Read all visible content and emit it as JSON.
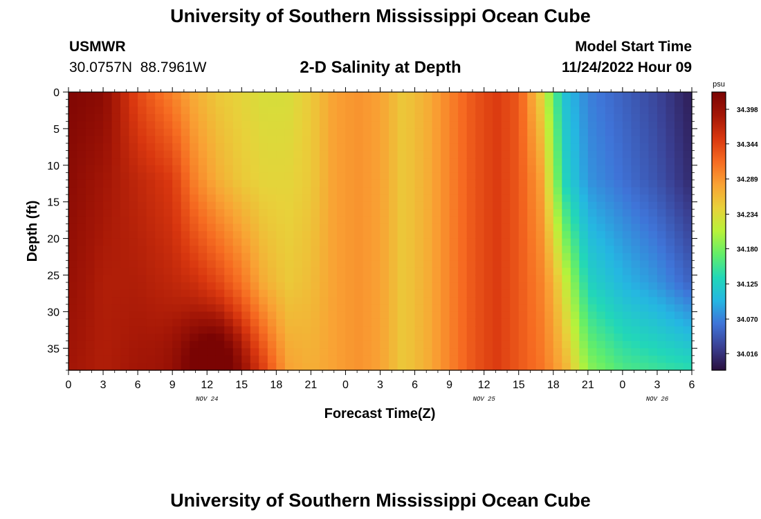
{
  "page": {
    "title": "University of Southern Mississippi Ocean Cube",
    "title_repeat": "University of Southern Mississippi Ocean Cube",
    "station_id": "USMWR",
    "station_coords": "30.0757N  88.7961W",
    "model_start_label": "Model Start Time",
    "model_start_value": "11/24/2022 Hour 09"
  },
  "chart_data": {
    "type": "heatmap",
    "title": "2-D Salinity at Depth",
    "xlabel": "Forecast Time(Z)",
    "ylabel": "Depth (ft)",
    "units": "psu",
    "x_hours_range": [
      0,
      54
    ],
    "ylim": [
      0,
      38
    ],
    "y_ticks": [
      0,
      5,
      10,
      15,
      20,
      25,
      30,
      35
    ],
    "x_tick_labels": [
      "0",
      "3",
      "6",
      "9",
      "12",
      "15",
      "18",
      "21",
      "0",
      "3",
      "6",
      "9",
      "12",
      "15",
      "18",
      "21",
      "0",
      "3",
      "6"
    ],
    "date_labels": [
      {
        "text": "NOV 24",
        "hour": 12
      },
      {
        "text": "NOV 25",
        "hour": 36
      },
      {
        "text": "NOV 26",
        "hour": 51
      }
    ],
    "colorbar": {
      "labels": [
        "34.398",
        "34.344",
        "34.289",
        "34.234",
        "34.180",
        "34.125",
        "34.070",
        "34.016"
      ],
      "min": 33.99,
      "max": 34.425,
      "colors": [
        "#2a0f3e",
        "#3a3f92",
        "#3f74d8",
        "#25b6e2",
        "#22d7b8",
        "#63ee69",
        "#b8f23a",
        "#e8d13a",
        "#f9a234",
        "#f66b21",
        "#d9370f",
        "#a31606",
        "#7a0403"
      ]
    },
    "grid": {
      "nx": 72,
      "ny": 38
    },
    "profiles": [
      {
        "hour": 0,
        "values": [
          34.42,
          34.41,
          34.4,
          34.39
        ]
      },
      {
        "hour": 3,
        "values": [
          34.41,
          34.39,
          34.38,
          34.38
        ]
      },
      {
        "hour": 6,
        "values": [
          34.34,
          34.37,
          34.38,
          34.39
        ]
      },
      {
        "hour": 9,
        "values": [
          34.3,
          34.35,
          34.37,
          34.39
        ]
      },
      {
        "hour": 11,
        "values": [
          34.27,
          34.3,
          34.36,
          34.4
        ]
      },
      {
        "hour": 13,
        "values": [
          34.25,
          34.27,
          34.34,
          34.41
        ]
      },
      {
        "hour": 15,
        "values": [
          34.24,
          34.25,
          34.31,
          34.38
        ]
      },
      {
        "hour": 17,
        "values": [
          34.23,
          34.24,
          34.27,
          34.34
        ]
      },
      {
        "hour": 19,
        "values": [
          34.23,
          34.24,
          34.25,
          34.28
        ]
      },
      {
        "hour": 21,
        "values": [
          34.25,
          34.25,
          34.26,
          34.27
        ]
      },
      {
        "hour": 23,
        "values": [
          34.28,
          34.28,
          34.28,
          34.28
        ]
      },
      {
        "hour": 25,
        "values": [
          34.29,
          34.29,
          34.29,
          34.29
        ]
      },
      {
        "hour": 27,
        "values": [
          34.28,
          34.28,
          34.28,
          34.28
        ]
      },
      {
        "hour": 29,
        "values": [
          34.25,
          34.25,
          34.25,
          34.25
        ]
      },
      {
        "hour": 31,
        "values": [
          34.27,
          34.27,
          34.27,
          34.27
        ]
      },
      {
        "hour": 33,
        "values": [
          34.3,
          34.3,
          34.3,
          34.3
        ]
      },
      {
        "hour": 35,
        "values": [
          34.33,
          34.33,
          34.33,
          34.33
        ]
      },
      {
        "hour": 37,
        "values": [
          34.35,
          34.35,
          34.35,
          34.35
        ]
      },
      {
        "hour": 39,
        "values": [
          34.33,
          34.33,
          34.33,
          34.33
        ]
      },
      {
        "hour": 41,
        "values": [
          34.24,
          34.28,
          34.3,
          34.31
        ]
      },
      {
        "hour": 42,
        "values": [
          34.17,
          34.2,
          34.27,
          34.29
        ]
      },
      {
        "hour": 43,
        "values": [
          34.11,
          34.13,
          34.22,
          34.27
        ]
      },
      {
        "hour": 45,
        "values": [
          34.07,
          34.08,
          34.13,
          34.19
        ]
      },
      {
        "hour": 48,
        "values": [
          34.05,
          34.06,
          34.1,
          34.16
        ]
      },
      {
        "hour": 51,
        "values": [
          34.03,
          34.04,
          34.08,
          34.15
        ]
      },
      {
        "hour": 54,
        "values": [
          34.0,
          34.01,
          34.05,
          34.14
        ]
      }
    ],
    "profile_depths": [
      0,
      12,
      26,
      38
    ],
    "warm_pocket": {
      "hour": 12.5,
      "depth": 36,
      "hour_spread": 3.0,
      "depth_spread": 5.5,
      "amount": 0.05
    }
  }
}
